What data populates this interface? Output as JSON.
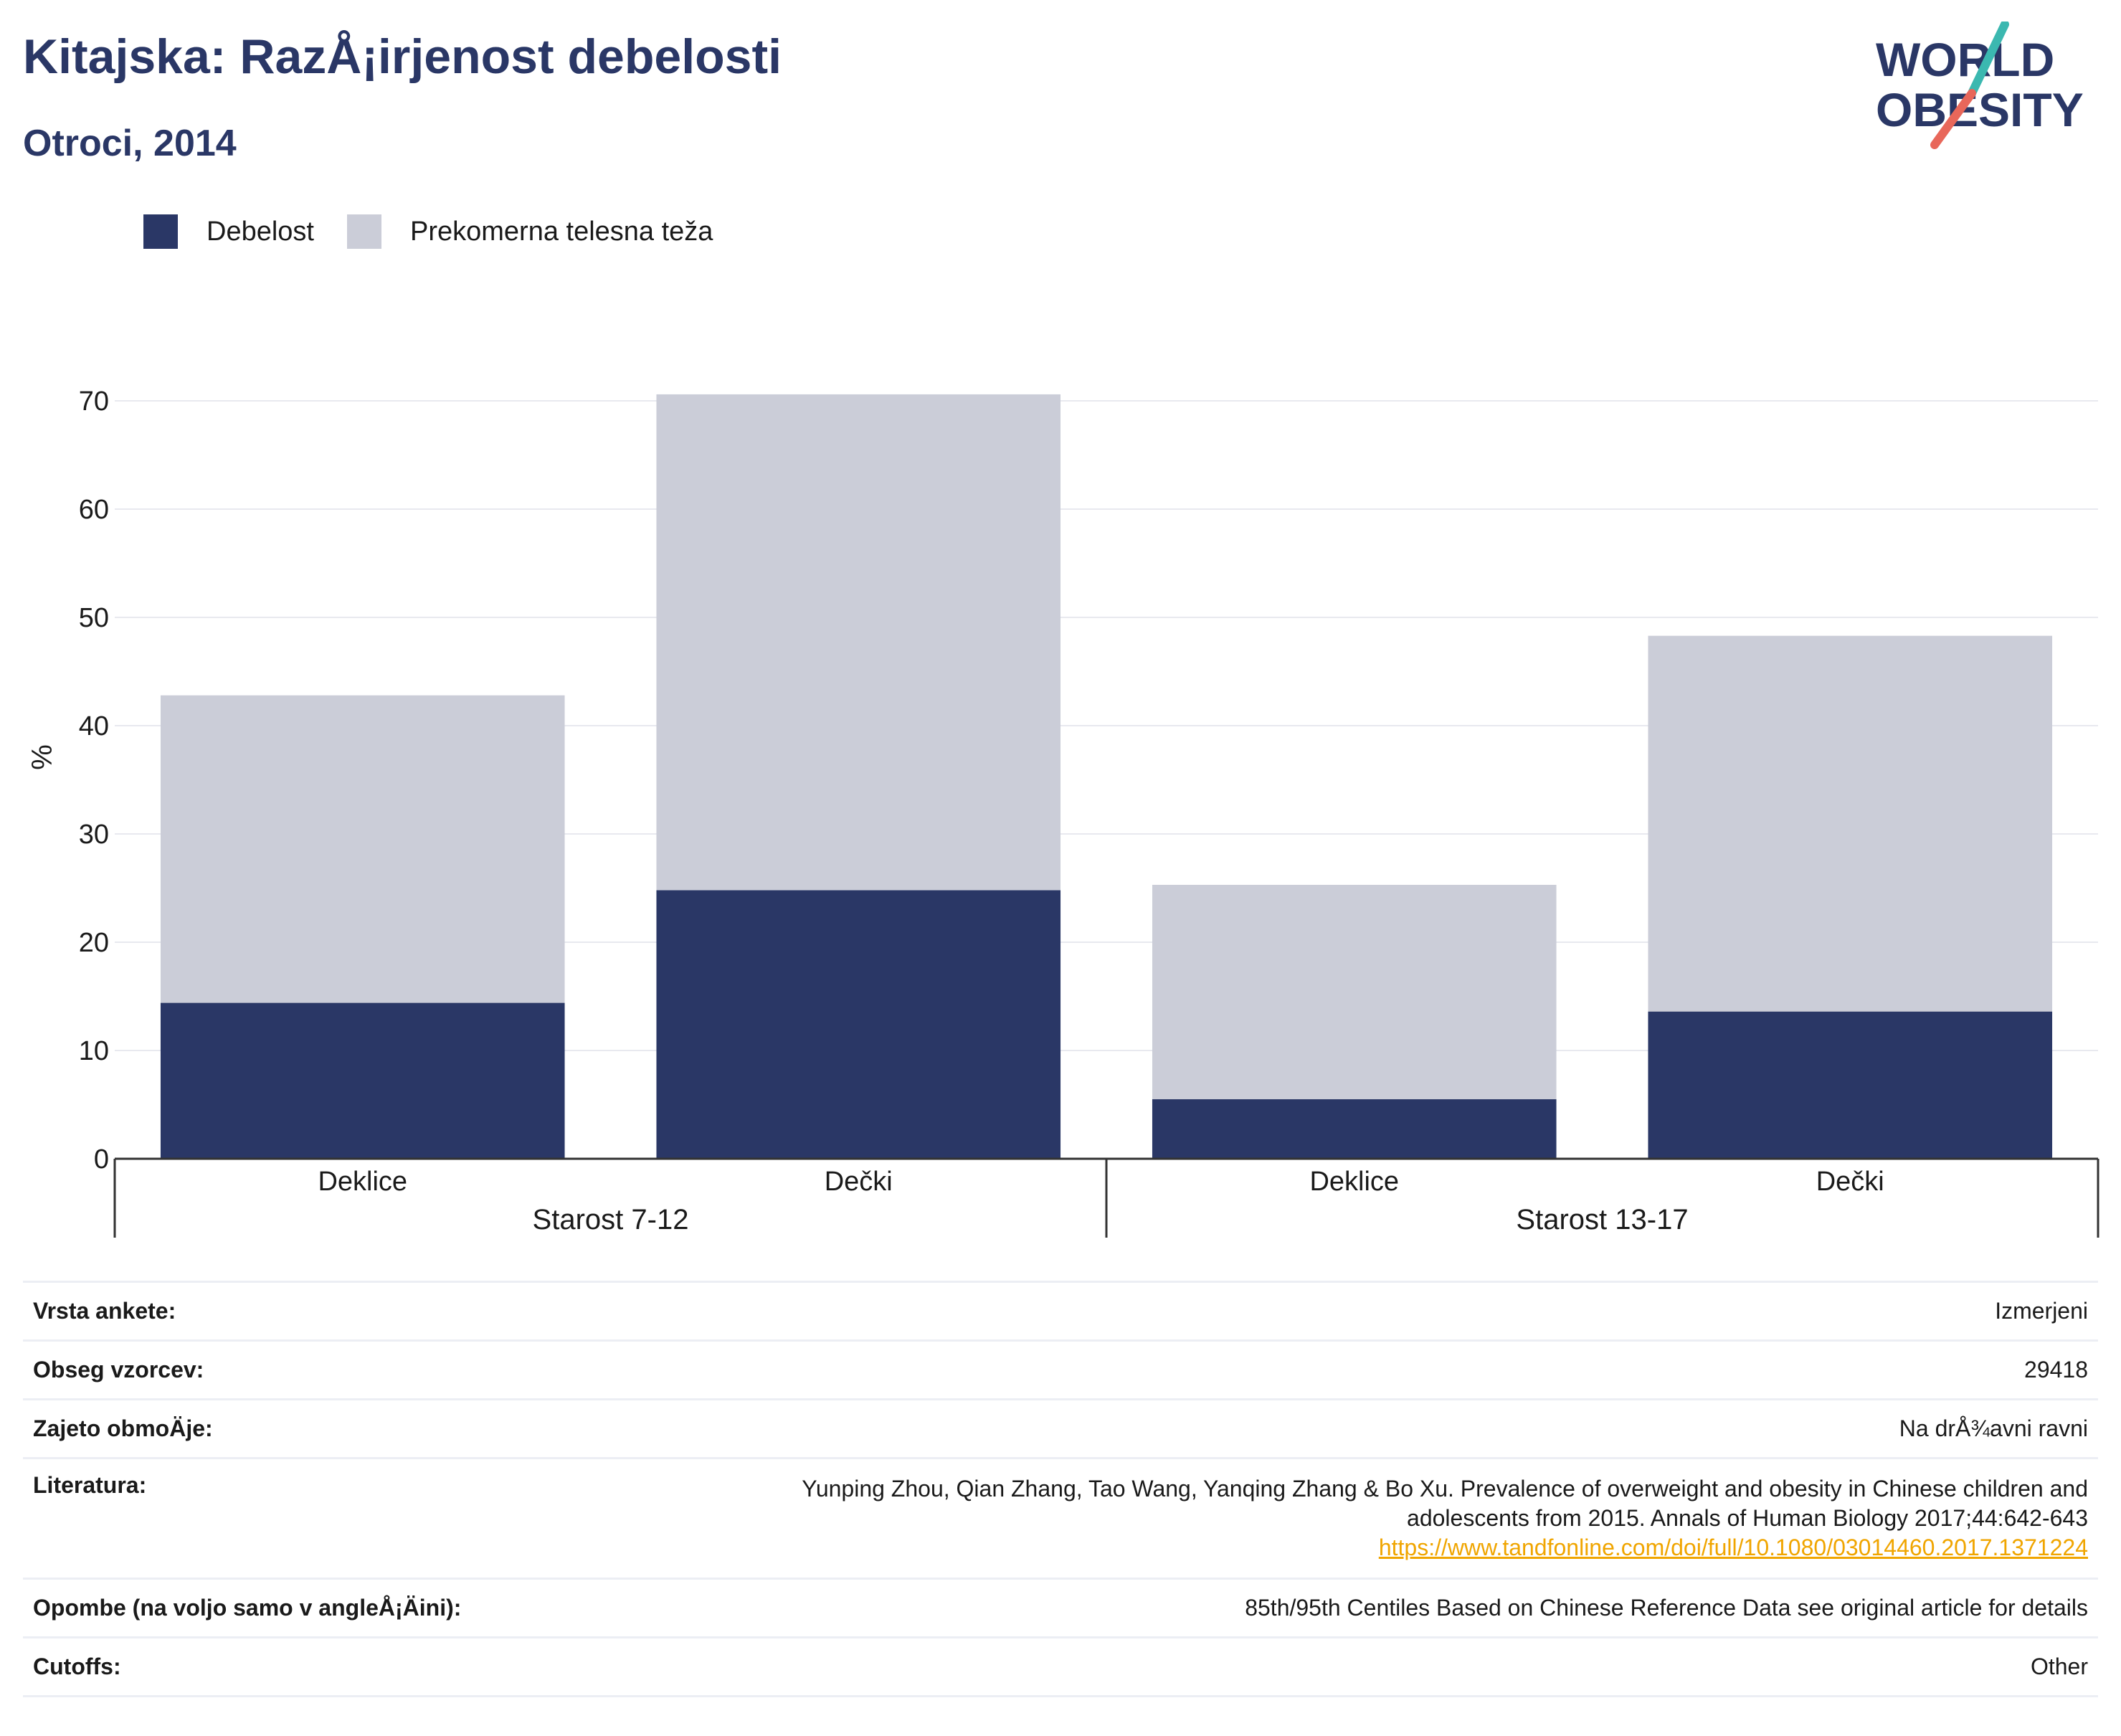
{
  "header": {
    "title": "Kitajska: RazÅ¡irjenost debelosti",
    "subtitle": "Otroci, 2014"
  },
  "logo": {
    "line1": "WORLD",
    "line2": "OBESITY",
    "colors": {
      "text": "#2a3766",
      "teal": "#3bb8b0",
      "coral": "#e8675a"
    }
  },
  "colors": {
    "obesity": "#2a3766",
    "overweight": "#cbcdd8",
    "grid": "#e8e9ef",
    "axis": "#333333"
  },
  "chart_data": {
    "type": "bar",
    "stacked": true,
    "ylabel": "%",
    "ylim": [
      0,
      75
    ],
    "yticks": [
      0,
      10,
      20,
      30,
      40,
      50,
      60,
      70
    ],
    "grid": true,
    "legend_position": "top-left",
    "groups": [
      {
        "label": "Starost 7-12",
        "categories": [
          "Deklice",
          "Dečki"
        ]
      },
      {
        "label": "Starost 13-17",
        "categories": [
          "Deklice",
          "Dečki"
        ]
      }
    ],
    "categories": [
      "Deklice",
      "Dečki",
      "Deklice",
      "Dečki"
    ],
    "series": [
      {
        "name": "Debelost",
        "values": [
          14.4,
          24.8,
          5.5,
          13.6
        ]
      },
      {
        "name": "Prekomerna telesna teža",
        "values": [
          28.4,
          45.8,
          19.8,
          34.7
        ]
      }
    ]
  },
  "info": [
    {
      "label": "Vrsta ankete:",
      "value": "Izmerjeni"
    },
    {
      "label": "Obseg vzorcev:",
      "value": "29418"
    },
    {
      "label": "Zajeto obmoÄje:",
      "value": "Na drÅ¾avni ravni"
    },
    {
      "label": "Literatura:",
      "lines": [
        "Yunping Zhou, Qian Zhang, Tao Wang, Yanqing Zhang & Bo Xu. Prevalence of overweight and obesity in Chinese children and",
        "adolescents from 2015. Annals of Human Biology 2017;44:642-643"
      ],
      "link": "https://www.tandfonline.com/doi/full/10.1080/03014460.2017.1371224"
    },
    {
      "label": "Opombe (na voljo samo v angleÅ¡Äini):",
      "value": "85th/95th Centiles Based on Chinese Reference Data see original article for details"
    },
    {
      "label": "Cutoffs:",
      "value": "Other"
    }
  ]
}
